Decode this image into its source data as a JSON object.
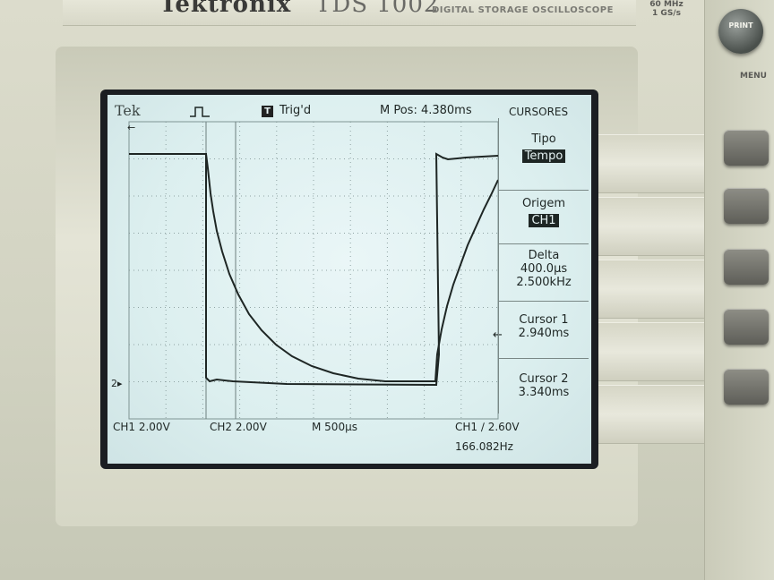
{
  "device": {
    "brand": "Tektronix",
    "model": "TDS 1002",
    "subtitle": "DIGITAL STORAGE OSCILLOSCOPE",
    "spec_bandwidth": "60 MHz",
    "spec_sample_rate": "1 GS/s",
    "print_button": "PRINT",
    "menu_label": "MENU"
  },
  "screen": {
    "logo": "Tek",
    "trigger_state": "Trig'd",
    "trigger_icon": "T",
    "main_position": "M Pos: 4.380ms",
    "menu_title": "CURSORES"
  },
  "cursor_menu": {
    "type_label": "Tipo",
    "type_value": "Tempo",
    "source_label": "Origem",
    "source_value": "CH1",
    "delta_label": "Delta",
    "delta_time": "400.0µs",
    "delta_freq": "2.500kHz",
    "cursor1_label": "Cursor 1",
    "cursor1_value": "2.940ms",
    "cursor2_label": "Cursor 2",
    "cursor2_value": "3.340ms"
  },
  "status": {
    "ch1_scale": "CH1  2.00V",
    "ch2_scale": "CH2  2.00V",
    "timebase": "M 500µs",
    "trigger": "CH1 ∕ 2.60V",
    "frequency": "166.082Hz"
  },
  "colors": {
    "screen_bg": "#dcefef",
    "trace": "#1e2624",
    "grid": "#8fa3a3"
  }
}
